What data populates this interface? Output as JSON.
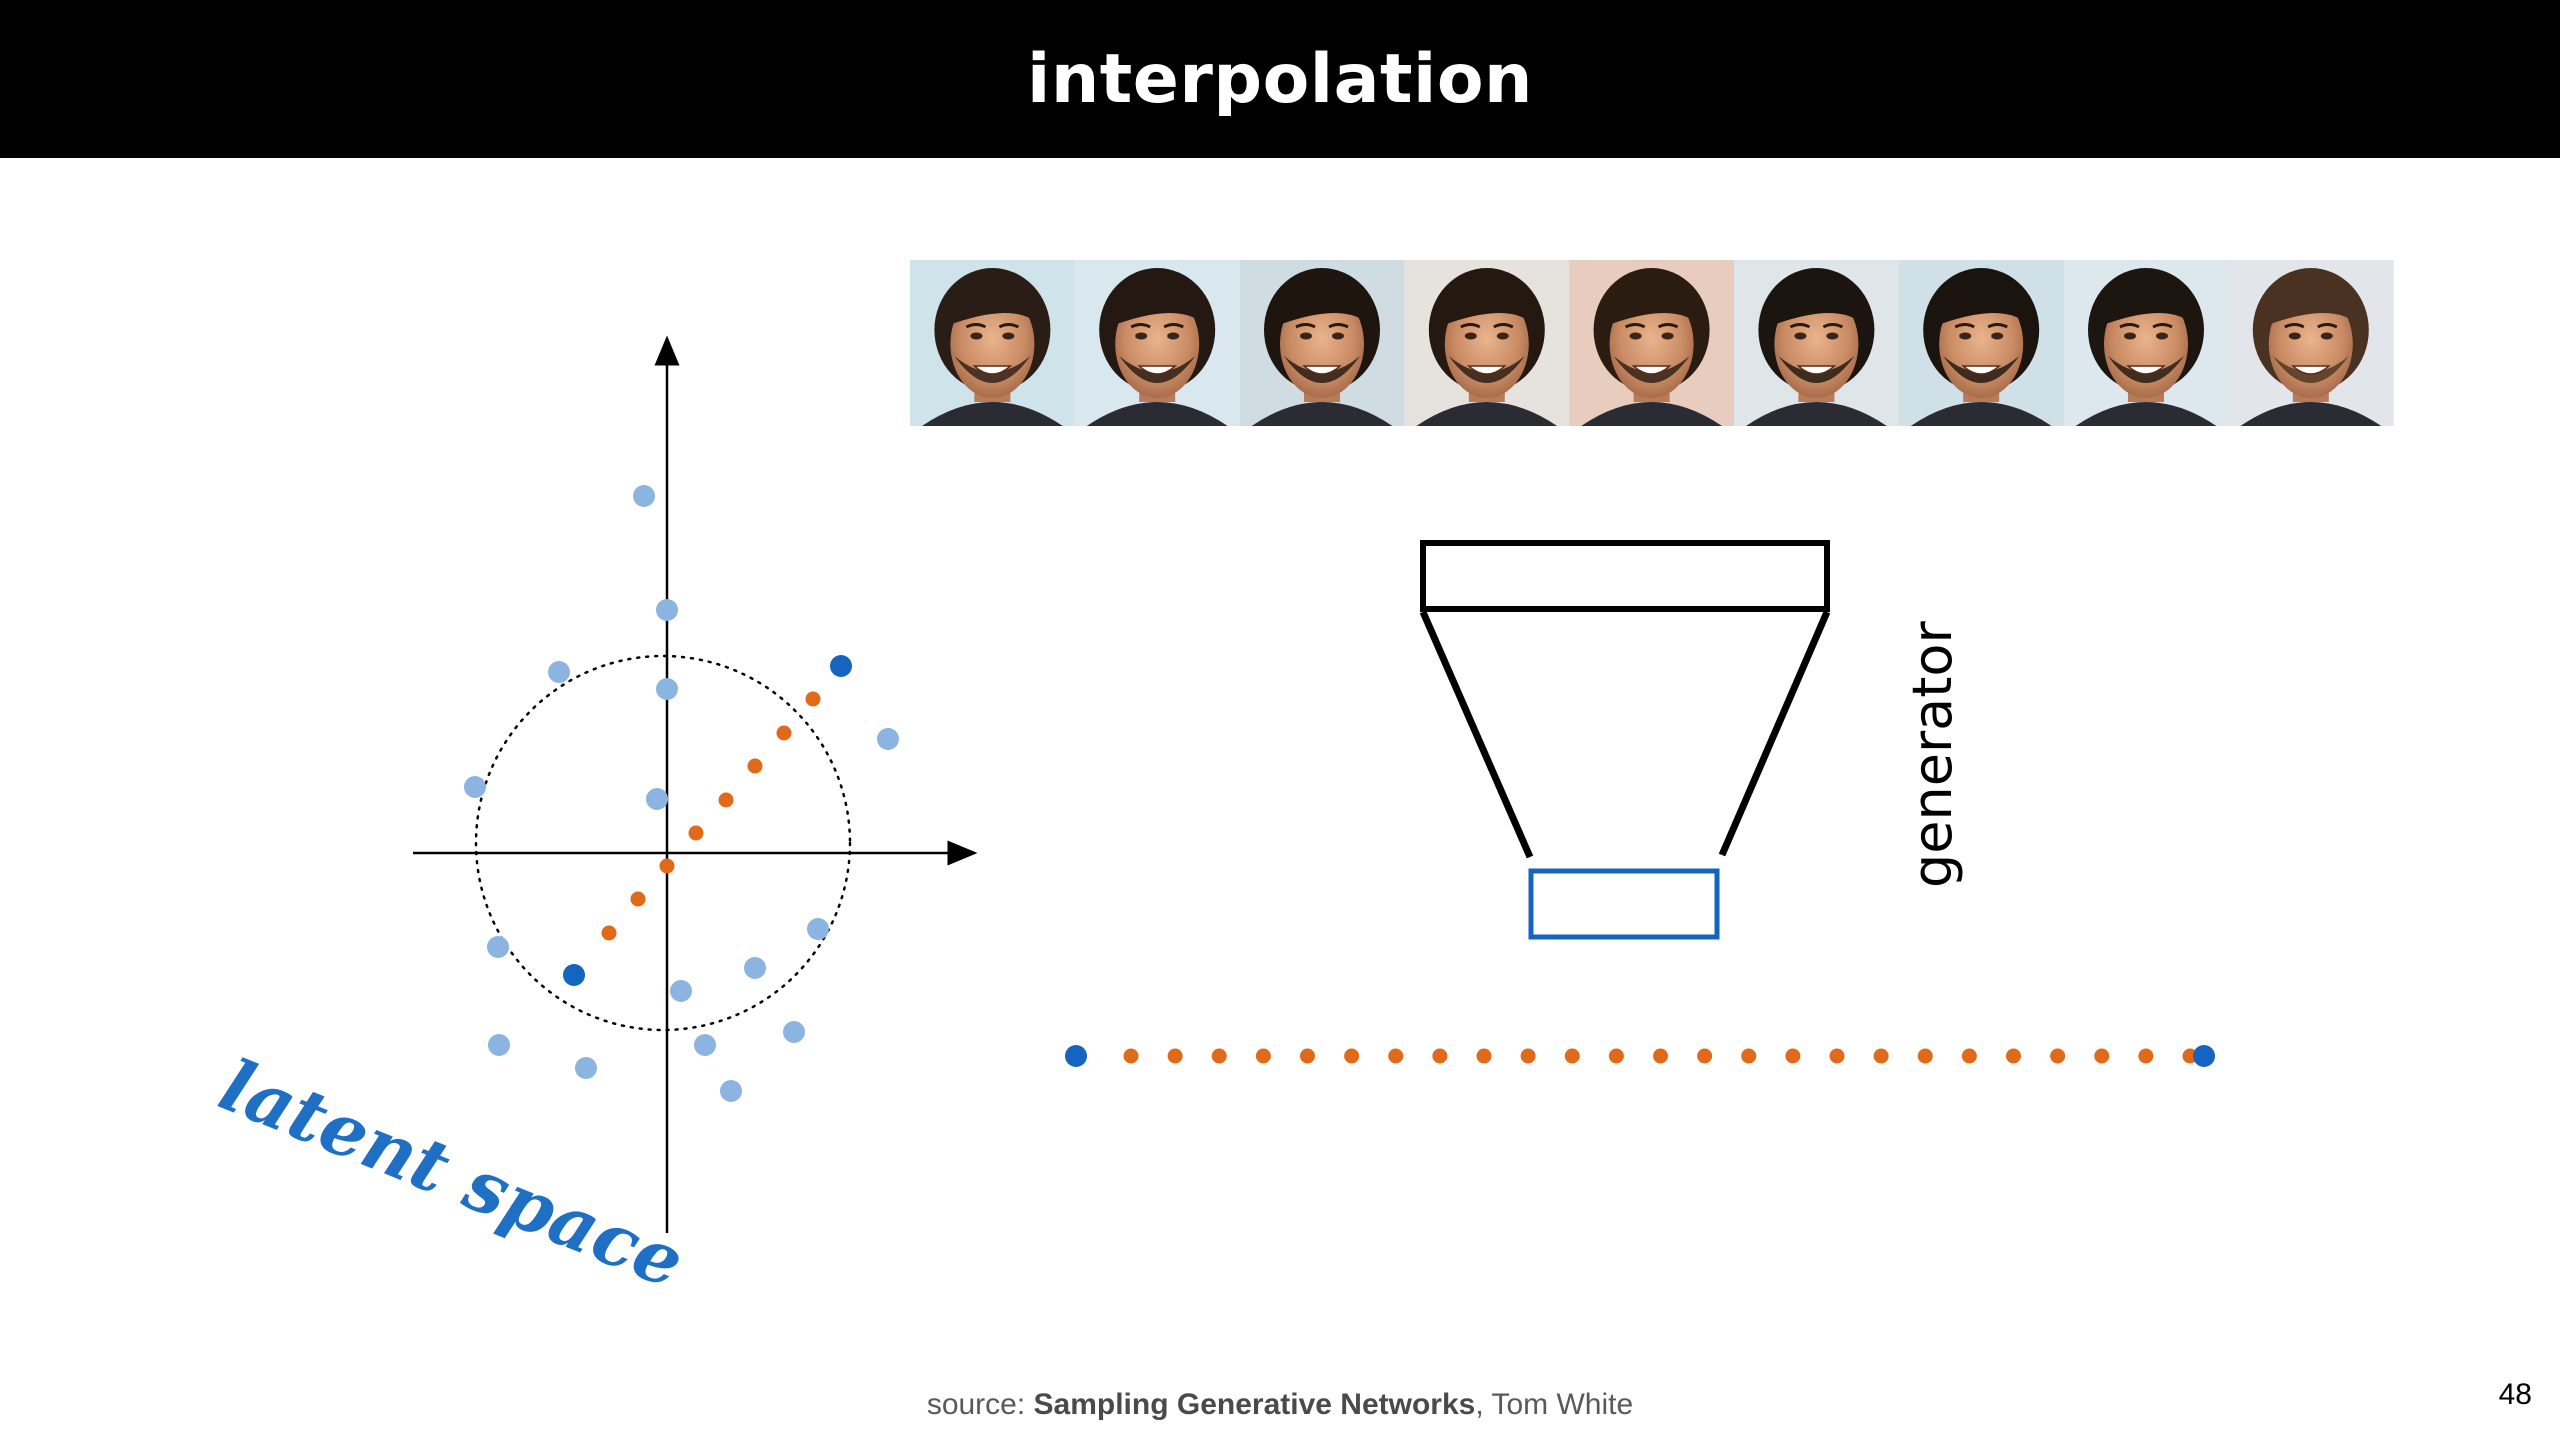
{
  "title": "interpolation",
  "generator_label": "generator",
  "latent_label": "latent space",
  "footer": {
    "prefix": "source: ",
    "work": "Sampling Generative Networks",
    "author": ", Tom White"
  },
  "page_number": "48",
  "colors": {
    "title_bar": "#000000",
    "title_text": "#ffffff",
    "dark_blue": "#1565c0",
    "light_blue": "#8cb4e0",
    "orange": "#e06a1a",
    "latent_text": "#1f6fc4",
    "generator_box": "#000000",
    "latent_box": "#1565c0"
  },
  "faces": {
    "count": 9,
    "description_icon": "face-thumbnail"
  },
  "latent_plot": {
    "light_points": 15,
    "orange_points": 7,
    "endpoints": 2
  },
  "interp_line": {
    "orange_points": 25,
    "endpoints": 2
  }
}
